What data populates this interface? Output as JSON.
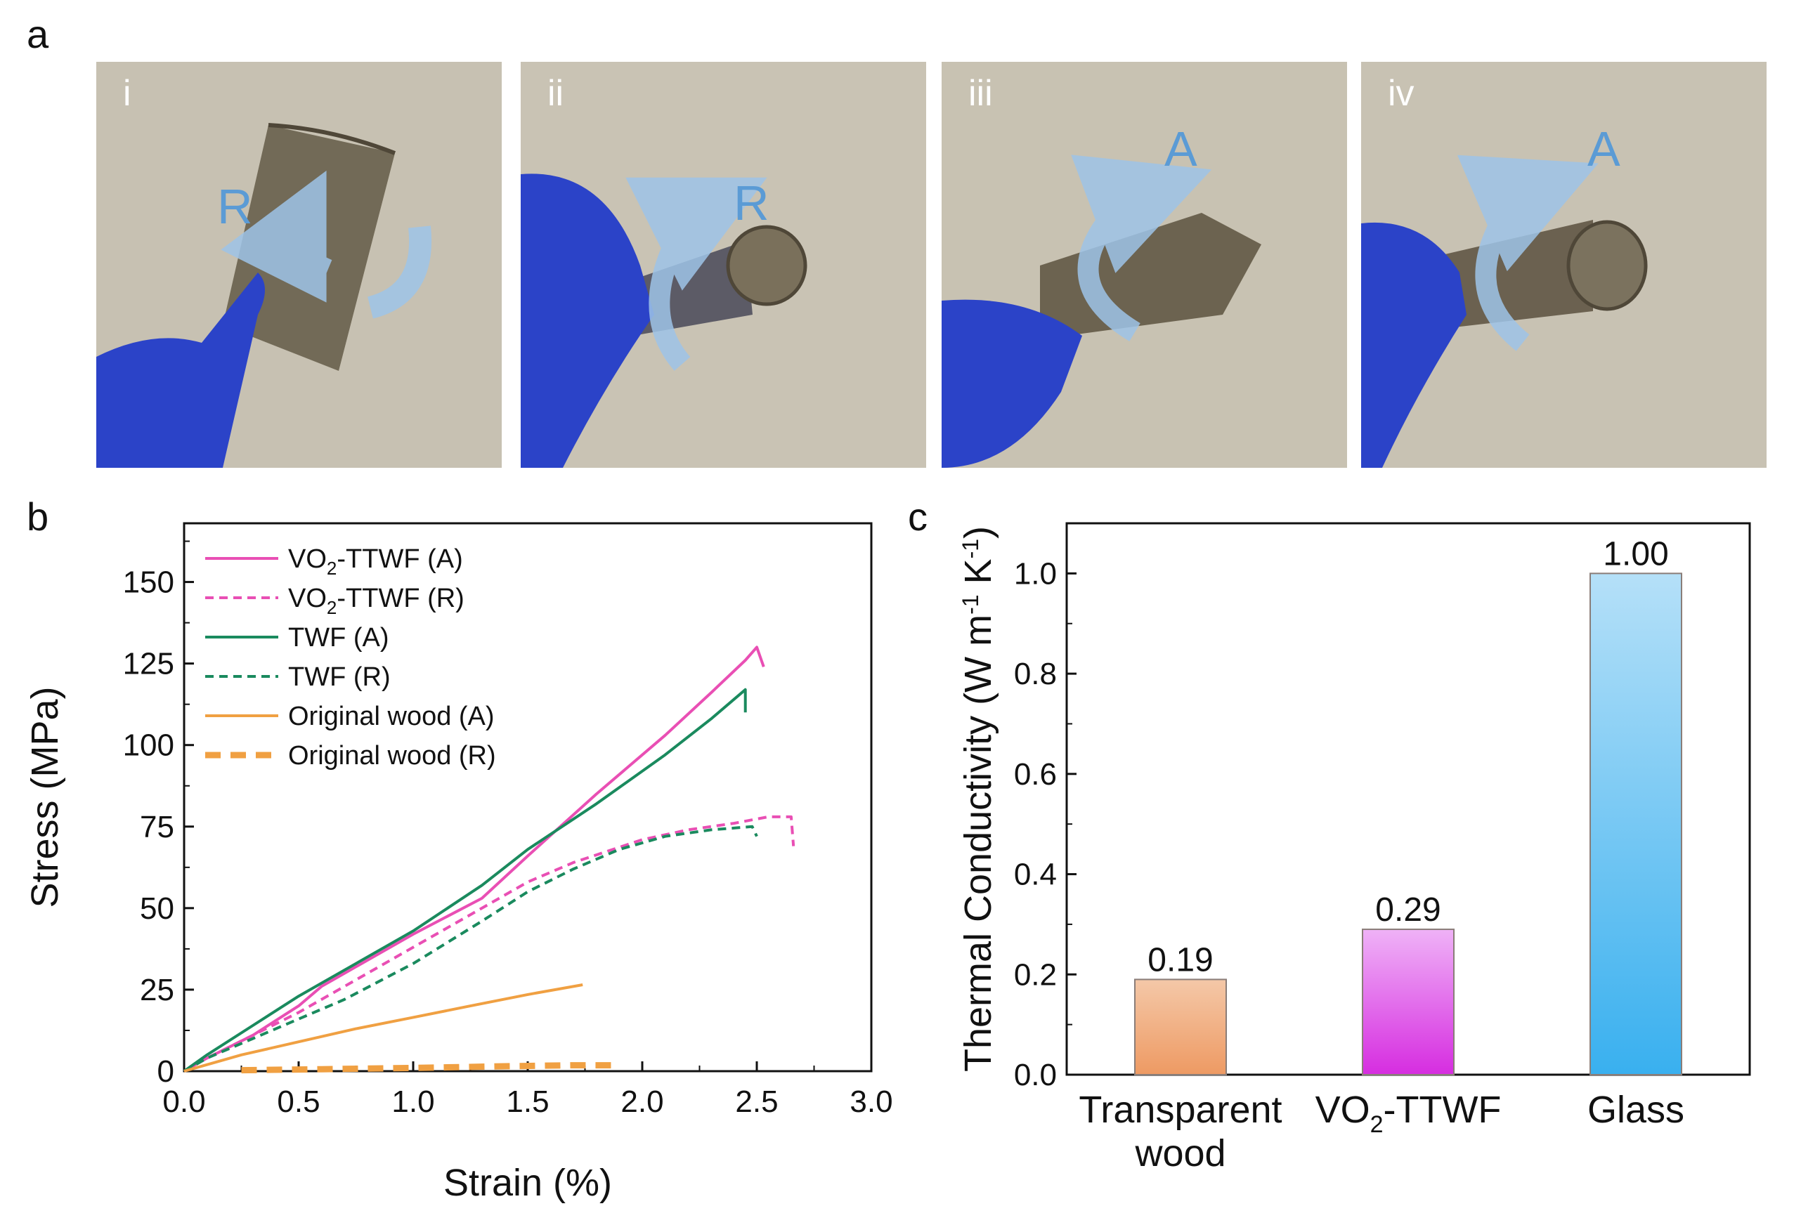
{
  "panels": {
    "a": "a",
    "b": "b",
    "c": "c"
  },
  "photos": [
    {
      "label": "i",
      "arrow": "R"
    },
    {
      "label": "ii",
      "arrow": "R"
    },
    {
      "label": "iii",
      "arrow": "A"
    },
    {
      "label": "iv",
      "arrow": "A"
    }
  ],
  "colors": {
    "pink": "#e94fb4",
    "green": "#1a8a5e",
    "orange": "#f0a042",
    "photo_bg": "#c4beae",
    "glove": "#2b43c8",
    "wood": "#6e6552",
    "arrow": "#5b9bd5"
  },
  "chart_data": [
    {
      "type": "line",
      "title": "",
      "xlabel": "Strain (%)",
      "ylabel": "Stress (MPa)",
      "xlim": [
        0,
        3.0
      ],
      "ylim": [
        0,
        168
      ],
      "xticks": [
        "0.0",
        "0.5",
        "1.0",
        "1.5",
        "2.0",
        "2.5",
        "3.0"
      ],
      "yticks": [
        "0",
        "25",
        "50",
        "75",
        "100",
        "125",
        "150"
      ],
      "legend": [
        {
          "prefix": "VO",
          "sub": "2",
          "suffix": "-TTWF (A)"
        },
        {
          "prefix": "VO",
          "sub": "2",
          "suffix": "-TTWF (R)"
        },
        {
          "prefix": "TWF (A)",
          "sub": "",
          "suffix": ""
        },
        {
          "prefix": "TWF (R)",
          "sub": "",
          "suffix": ""
        },
        {
          "prefix": "Original wood (A)",
          "sub": "",
          "suffix": ""
        },
        {
          "prefix": "Original wood (R)",
          "sub": "",
          "suffix": ""
        }
      ],
      "series": [
        {
          "name": "VO2-TTWF (A)",
          "color": "#e94fb4",
          "dash": "solid",
          "width": 4,
          "x": [
            0,
            0.1,
            0.3,
            0.5,
            0.6,
            0.8,
            1.0,
            1.3,
            1.5,
            1.8,
            2.1,
            2.3,
            2.45,
            2.5,
            2.53
          ],
          "y": [
            0,
            4,
            11,
            20,
            26,
            34,
            42,
            53,
            66,
            85,
            103,
            116,
            126,
            130,
            124
          ]
        },
        {
          "name": "VO2-TTWF (R)",
          "color": "#e94fb4",
          "dash": "dashed",
          "width": 4,
          "x": [
            0,
            0.1,
            0.3,
            0.5,
            0.7,
            1.0,
            1.3,
            1.5,
            1.7,
            2.0,
            2.2,
            2.4,
            2.55,
            2.65,
            2.66
          ],
          "y": [
            0,
            4,
            11,
            18,
            26,
            38,
            50,
            58,
            64,
            71,
            74,
            76,
            78,
            78,
            69
          ]
        },
        {
          "name": "TWF (A)",
          "color": "#1a8a5e",
          "dash": "solid",
          "width": 4,
          "x": [
            0,
            0.1,
            0.3,
            0.5,
            0.7,
            1.0,
            1.3,
            1.5,
            1.8,
            2.1,
            2.3,
            2.45,
            2.45
          ],
          "y": [
            0,
            5,
            14,
            23,
            31,
            43,
            57,
            68,
            82,
            97,
            108,
            117,
            110
          ]
        },
        {
          "name": "TWF (R)",
          "color": "#1a8a5e",
          "dash": "dashed",
          "width": 4,
          "x": [
            0,
            0.1,
            0.3,
            0.5,
            0.7,
            1.0,
            1.3,
            1.5,
            1.7,
            1.9,
            2.1,
            2.3,
            2.48,
            2.5
          ],
          "y": [
            0,
            4,
            10,
            16,
            22,
            33,
            46,
            55,
            62,
            68,
            72,
            74,
            75,
            72
          ]
        },
        {
          "name": "Original wood (A)",
          "color": "#f0a042",
          "dash": "solid",
          "width": 4,
          "x": [
            0,
            0.25,
            0.5,
            0.75,
            1.0,
            1.25,
            1.5,
            1.74
          ],
          "y": [
            0,
            5,
            9,
            13,
            16.5,
            20,
            23.5,
            26.5
          ]
        },
        {
          "name": "Original wood (R)",
          "color": "#f0a042",
          "dash": "bigdash",
          "width": 9,
          "x": [
            0.25,
            0.6,
            1.0,
            1.4,
            1.7,
            1.9
          ],
          "y": [
            0.3,
            0.6,
            1.0,
            1.5,
            1.8,
            1.8
          ]
        }
      ]
    },
    {
      "type": "bar",
      "title": "",
      "xlabel": "",
      "ylabel": "Thermal Conductivity (W m⁻¹ K⁻¹)",
      "ylabel_parts": {
        "main": "Thermal Conductivity (W m",
        "sup1": "-1",
        "mid": " K",
        "sup2": "-1",
        "end": ")"
      },
      "ylim": [
        0,
        1.1
      ],
      "yticks": [
        "0.0",
        "0.2",
        "0.4",
        "0.6",
        "0.8",
        "1.0"
      ],
      "categories": [
        "Transparent wood",
        "VO2-TTWF",
        "Glass"
      ],
      "category_lines": [
        [
          "Transparent",
          "wood"
        ],
        [
          "VO",
          "2",
          "-TTWF"
        ],
        [
          "Glass"
        ]
      ],
      "values": [
        0.19,
        0.29,
        1.0
      ],
      "value_labels": [
        "0.19",
        "0.29",
        "1.00"
      ],
      "bar_colors": [
        {
          "top": "#f4c8a8",
          "bottom": "#ee9a63"
        },
        {
          "top": "#efb2f7",
          "bottom": "#d62de0"
        },
        {
          "top": "#b5e0f8",
          "bottom": "#39b0ef"
        }
      ]
    }
  ]
}
